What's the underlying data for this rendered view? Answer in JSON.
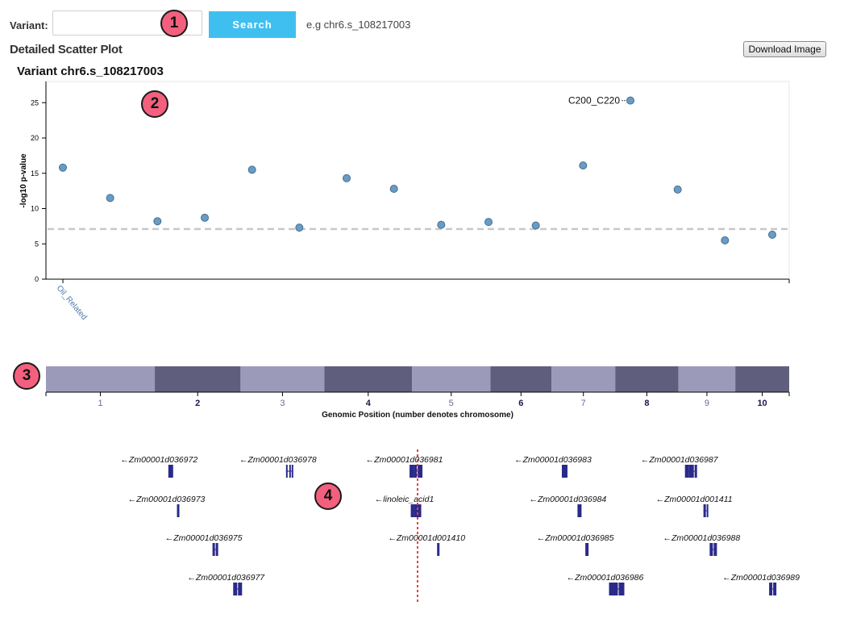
{
  "search": {
    "label": "Variant:",
    "value": "",
    "button_label": "Search",
    "example": "e.g chr6.s_108217003"
  },
  "section": {
    "title": "Detailed Scatter Plot",
    "download_label": "Download Image"
  },
  "badges": [
    "1",
    "2",
    "3",
    "4"
  ],
  "colors": {
    "point": "#6b9bc3",
    "point_stroke": "#3e6f94",
    "threshold": "#c8c8c8",
    "band_light": "#9b9bb9",
    "band_dark": "#5f5f7d",
    "gene": "#2a2a8a",
    "variant_line": "#e84040",
    "category_label": "#4a78a8"
  },
  "chart_data": [
    {
      "type": "scatter",
      "title": "Variant chr6.s_108217003",
      "ylabel": "-log10 p-value",
      "xlabel": "",
      "ylim": [
        0,
        28
      ],
      "yticks": [
        0,
        5,
        10,
        15,
        20,
        25
      ],
      "categories": [
        "Oil_Related"
      ],
      "threshold": 7.1,
      "grid": false,
      "points": [
        {
          "x": 1,
          "y": 15.8
        },
        {
          "x": 2,
          "y": 11.5
        },
        {
          "x": 3,
          "y": 8.2
        },
        {
          "x": 4,
          "y": 8.7
        },
        {
          "x": 5,
          "y": 15.5
        },
        {
          "x": 6,
          "y": 7.3
        },
        {
          "x": 7,
          "y": 14.3
        },
        {
          "x": 8,
          "y": 12.8
        },
        {
          "x": 9,
          "y": 7.7
        },
        {
          "x": 10,
          "y": 8.1
        },
        {
          "x": 11,
          "y": 7.6
        },
        {
          "x": 12,
          "y": 16.1
        },
        {
          "x": 13,
          "y": 25.3,
          "label": "C200_C220"
        },
        {
          "x": 14,
          "y": 12.7
        },
        {
          "x": 15,
          "y": 5.5
        },
        {
          "x": 16,
          "y": 6.3
        }
      ]
    },
    {
      "type": "chromosome-bar",
      "xlabel": "Genomic Position (number denotes chromosome)",
      "chromosomes": [
        {
          "label": "1",
          "length": 301,
          "bold": false
        },
        {
          "label": "2",
          "length": 237,
          "bold": true
        },
        {
          "label": "3",
          "length": 232,
          "bold": false
        },
        {
          "label": "4",
          "length": 242,
          "bold": true
        },
        {
          "label": "5",
          "length": 217,
          "bold": false
        },
        {
          "label": "6",
          "length": 169,
          "bold": true
        },
        {
          "label": "7",
          "length": 176,
          "bold": false
        },
        {
          "label": "8",
          "length": 175,
          "bold": true
        },
        {
          "label": "9",
          "length": 157,
          "bold": false
        },
        {
          "label": "10",
          "length": 149,
          "bold": true
        }
      ]
    },
    {
      "type": "gene-track",
      "variant_position": 0.5,
      "genes": [
        {
          "name": "←Zm00001d036972",
          "pos": 0.15,
          "lane": 0,
          "exons": [
            [
              0,
              5,
              7
            ]
          ]
        },
        {
          "name": "←Zm00001d036978",
          "pos": 0.31,
          "lane": 0,
          "exons": [
            [
              0,
              1,
              2
            ],
            [
              4,
              1,
              2
            ],
            [
              7,
              1,
              2
            ]
          ]
        },
        {
          "name": "←Zm00001d036981",
          "pos": 0.48,
          "lane": 0,
          "exons": [
            [
              0,
              4,
              3
            ],
            [
              5,
              3,
              3
            ],
            [
              10,
              5,
              3
            ]
          ]
        },
        {
          "name": "←Zm00001d036983",
          "pos": 0.68,
          "lane": 0,
          "exons": [
            [
              0,
              6,
              7
            ]
          ]
        },
        {
          "name": "←Zm00001d036987",
          "pos": 0.85,
          "lane": 0,
          "exons": [
            [
              0,
              4,
              3
            ],
            [
              5,
              5,
              3
            ],
            [
              12,
              2,
              3
            ]
          ]
        },
        {
          "name": "←Zm00001d036973",
          "pos": 0.16,
          "lane": 1,
          "exons": [
            [
              0,
              2,
              2
            ]
          ]
        },
        {
          "name": "←linoleic_acid1",
          "pos": 0.48,
          "lane": 1,
          "exons": [
            [
              0,
              3,
              3
            ],
            [
              4,
              4,
              3
            ],
            [
              9,
              3,
              3
            ]
          ]
        },
        {
          "name": "←Zm00001d036984",
          "pos": 0.7,
          "lane": 1,
          "exons": [
            [
              0,
              4,
              7
            ]
          ]
        },
        {
          "name": "←Zm00001d001411",
          "pos": 0.87,
          "lane": 1,
          "exons": [
            [
              0,
              2,
              2
            ],
            [
              4,
              1,
              2
            ]
          ]
        },
        {
          "name": "←Zm00001d036975",
          "pos": 0.21,
          "lane": 2,
          "exons": [
            [
              0,
              2,
              3
            ],
            [
              4,
              2,
              3
            ]
          ]
        },
        {
          "name": "←Zm00001d001410",
          "pos": 0.51,
          "lane": 2,
          "exons": [
            [
              0,
              2,
              2
            ]
          ]
        },
        {
          "name": "←Zm00001d036985",
          "pos": 0.71,
          "lane": 2,
          "exons": [
            [
              0,
              3,
              5
            ]
          ]
        },
        {
          "name": "←Zm00001d036988",
          "pos": 0.88,
          "lane": 2,
          "exons": [
            [
              0,
              3,
              3
            ],
            [
              5,
              3,
              3
            ]
          ]
        },
        {
          "name": "←Zm00001d036977",
          "pos": 0.24,
          "lane": 3,
          "exons": [
            [
              0,
              4,
              3
            ],
            [
              6,
              4,
              3
            ]
          ]
        },
        {
          "name": "←Zm00001d036986",
          "pos": 0.75,
          "lane": 3,
          "exons": [
            [
              0,
              4,
              3
            ],
            [
              5,
              5,
              3
            ],
            [
              12,
              6,
              3
            ]
          ]
        },
        {
          "name": "←Zm00001d036989",
          "pos": 0.96,
          "lane": 3,
          "exons": [
            [
              0,
              3,
              3
            ],
            [
              5,
              3,
              3
            ]
          ]
        }
      ]
    }
  ]
}
